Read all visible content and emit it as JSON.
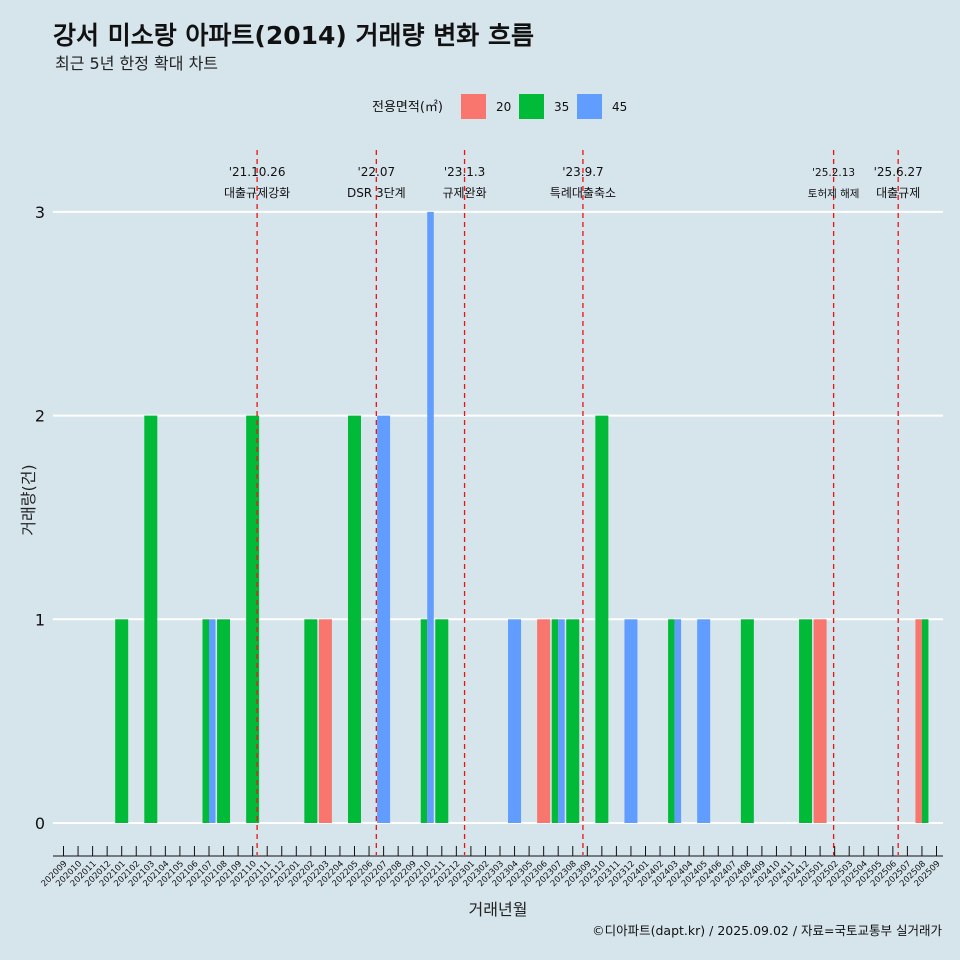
{
  "header": {
    "title": "강서 미소랑 아파트(2014) 거래량 변화 흐름",
    "subtitle": "최근 5년 한정 확대 차트"
  },
  "legend": {
    "title": "전용면적(㎡)",
    "items": [
      {
        "label": "20",
        "color": "#f8766d"
      },
      {
        "label": "35",
        "color": "#00ba38"
      },
      {
        "label": "45",
        "color": "#619cff"
      }
    ]
  },
  "caption": "©디아파트(dapt.kr) / 2025.09.02 / 자료=국토교통부 실거래가",
  "chart_data": {
    "type": "bar",
    "xlabel": "거래년월",
    "ylabel": "거래량(건)",
    "ylim": [
      0,
      3
    ],
    "yticks": [
      0,
      1,
      2,
      3
    ],
    "grid": "horizontal",
    "legend_position": "top",
    "categories": [
      "202009",
      "202010",
      "202011",
      "202012",
      "202101",
      "202102",
      "202103",
      "202104",
      "202105",
      "202106",
      "202107",
      "202108",
      "202109",
      "202110",
      "202111",
      "202112",
      "202201",
      "202202",
      "202203",
      "202204",
      "202205",
      "202206",
      "202207",
      "202208",
      "202209",
      "202210",
      "202211",
      "202212",
      "202301",
      "202302",
      "202303",
      "202304",
      "202305",
      "202306",
      "202307",
      "202308",
      "202309",
      "202310",
      "202311",
      "202312",
      "202401",
      "202402",
      "202403",
      "202404",
      "202405",
      "202406",
      "202407",
      "202408",
      "202409",
      "202410",
      "202411",
      "202412",
      "202501",
      "202502",
      "202503",
      "202504",
      "202505",
      "202506",
      "202507",
      "202508",
      "202509"
    ],
    "bars": [
      {
        "month": "202101",
        "area": "35",
        "value": 1
      },
      {
        "month": "202103",
        "area": "35",
        "value": 2
      },
      {
        "month": "202107",
        "area": "35",
        "value": 1
      },
      {
        "month": "202107",
        "area": "45",
        "value": 1
      },
      {
        "month": "202108",
        "area": "35",
        "value": 1
      },
      {
        "month": "202110",
        "area": "35",
        "value": 2
      },
      {
        "month": "202202",
        "area": "35",
        "value": 1
      },
      {
        "month": "202203",
        "area": "20",
        "value": 1
      },
      {
        "month": "202205",
        "area": "35",
        "value": 2
      },
      {
        "month": "202207",
        "area": "45",
        "value": 2
      },
      {
        "month": "202210",
        "area": "35",
        "value": 1
      },
      {
        "month": "202210",
        "area": "45",
        "value": 3
      },
      {
        "month": "202211",
        "area": "35",
        "value": 1
      },
      {
        "month": "202304",
        "area": "45",
        "value": 1
      },
      {
        "month": "202306",
        "area": "20",
        "value": 1
      },
      {
        "month": "202307",
        "area": "35",
        "value": 1
      },
      {
        "month": "202307",
        "area": "45",
        "value": 1
      },
      {
        "month": "202308",
        "area": "35",
        "value": 1
      },
      {
        "month": "202310",
        "area": "35",
        "value": 2
      },
      {
        "month": "202312",
        "area": "45",
        "value": 1
      },
      {
        "month": "202403",
        "area": "35",
        "value": 1
      },
      {
        "month": "202403",
        "area": "45",
        "value": 1
      },
      {
        "month": "202405",
        "area": "45",
        "value": 1
      },
      {
        "month": "202408",
        "area": "35",
        "value": 1
      },
      {
        "month": "202412",
        "area": "35",
        "value": 1
      },
      {
        "month": "202501",
        "area": "20",
        "value": 1
      },
      {
        "month": "202508",
        "area": "20",
        "value": 1
      },
      {
        "month": "202508",
        "area": "35",
        "value": 1
      }
    ],
    "events": [
      {
        "date": "2021-10-26",
        "line1": "'21.10.26",
        "line2": "대출규제강화",
        "small": false
      },
      {
        "date": "2022-07-01",
        "line1": "'22.07",
        "line2": "DSR 3단계",
        "small": false
      },
      {
        "date": "2023-01-03",
        "line1": "'23.1.3",
        "line2": "규제완화",
        "small": false
      },
      {
        "date": "2023-09-07",
        "line1": "'23.9.7",
        "line2": "특례대출축소",
        "small": false
      },
      {
        "date": "2025-02-13",
        "line1": "'25.2.13",
        "line2": "토허제 해제",
        "small": true
      },
      {
        "date": "2025-06-27",
        "line1": "'25.6.27",
        "line2": "대출규제",
        "small": false
      }
    ],
    "event_line_color": "#ee1111"
  }
}
